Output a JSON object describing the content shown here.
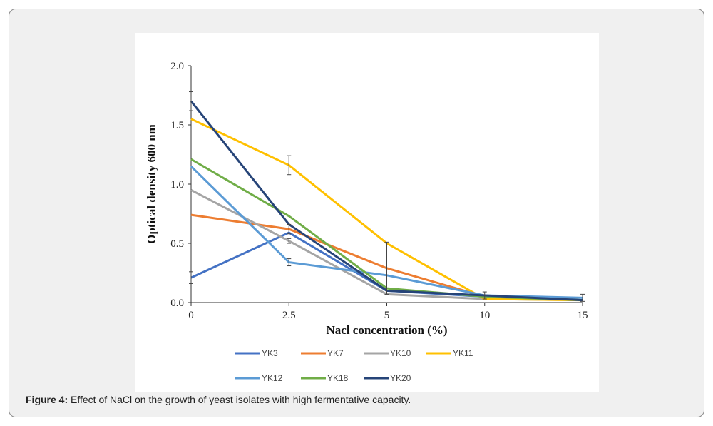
{
  "caption": {
    "lead": "Figure 4:",
    "text": " Effect of NaCl on the growth of yeast isolates with high fermentative capacity."
  },
  "chart_data": {
    "type": "line",
    "title": "",
    "xlabel": "Nacl concentration (%)",
    "ylabel": "Optical density 600 nm",
    "categories": [
      "0",
      "2.5",
      "5",
      "10",
      "15"
    ],
    "ylim": [
      0,
      2.0
    ],
    "yticks": [
      "0.0",
      "0.5",
      "1.0",
      "1.5",
      "2.0"
    ],
    "yticks_values": [
      0,
      0.5,
      1.0,
      1.5,
      2.0
    ],
    "legend_position": "bottom",
    "series": [
      {
        "name": "YK3",
        "color": "#4472c4",
        "values": [
          0.21,
          0.59,
          0.1,
          0.05,
          0.02
        ]
      },
      {
        "name": "YK7",
        "color": "#ed7d31",
        "values": [
          0.74,
          0.62,
          0.29,
          0.05,
          0.02
        ]
      },
      {
        "name": "YK10",
        "color": "#a5a5a5",
        "values": [
          0.95,
          0.52,
          0.07,
          0.03,
          0.02
        ]
      },
      {
        "name": "YK11",
        "color": "#ffc000",
        "values": [
          1.55,
          1.16,
          0.5,
          0.03,
          0.02
        ]
      },
      {
        "name": "YK12",
        "color": "#5b9bd5",
        "values": [
          1.15,
          0.34,
          0.23,
          0.06,
          0.04
        ]
      },
      {
        "name": "YK18",
        "color": "#70ad47",
        "values": [
          1.21,
          0.73,
          0.12,
          0.05,
          0.02
        ]
      },
      {
        "name": "YK20",
        "color": "#264478",
        "values": [
          1.7,
          0.66,
          0.1,
          0.06,
          0.02
        ]
      }
    ],
    "error_bars": [
      {
        "category": "0",
        "value": 1.7,
        "err": 0.08
      },
      {
        "category": "0",
        "value": 0.21,
        "err": 0.05
      },
      {
        "category": "2.5",
        "value": 1.16,
        "err": 0.08
      },
      {
        "category": "2.5",
        "value": 0.62,
        "err": 0.04
      },
      {
        "category": "2.5",
        "value": 0.52,
        "err": 0.02
      },
      {
        "category": "2.5",
        "value": 0.34,
        "err": 0.03
      },
      {
        "category": "5",
        "value": 0.29,
        "err": 0.22
      },
      {
        "category": "10",
        "value": 0.06,
        "err": 0.03
      },
      {
        "category": "15",
        "value": 0.04,
        "err": 0.03
      }
    ]
  }
}
